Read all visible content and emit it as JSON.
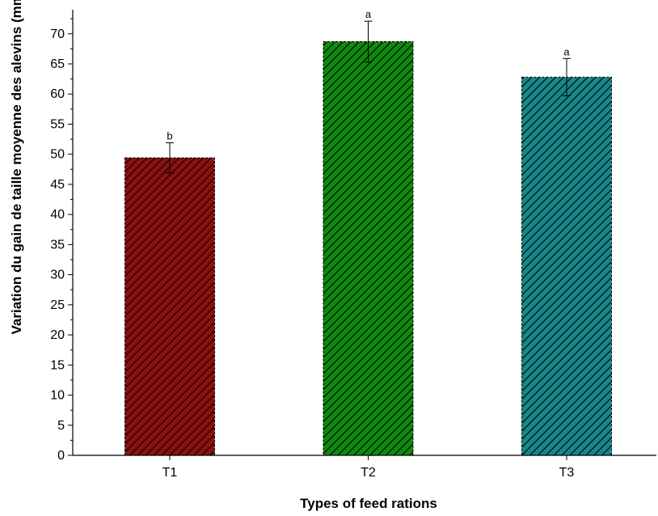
{
  "chart_data": {
    "type": "bar",
    "title": "",
    "xlabel": "Types of feed rations",
    "ylabel": "Variation du gain de taille moyenne des alevins (mm)",
    "ylim": [
      0,
      74
    ],
    "yticks": [
      0,
      5,
      10,
      15,
      20,
      25,
      30,
      35,
      40,
      45,
      50,
      55,
      60,
      65,
      70
    ],
    "grid": false,
    "categories": [
      "T1",
      "T2",
      "T3"
    ],
    "values": [
      49.4,
      68.7,
      62.8
    ],
    "error": [
      2.5,
      3.4,
      3.1
    ],
    "significance": [
      "b",
      "a",
      "a"
    ],
    "colors": [
      "#8b1010",
      "#0f8a0f",
      "#17878a"
    ],
    "pattern": "diagonal-hatch"
  }
}
